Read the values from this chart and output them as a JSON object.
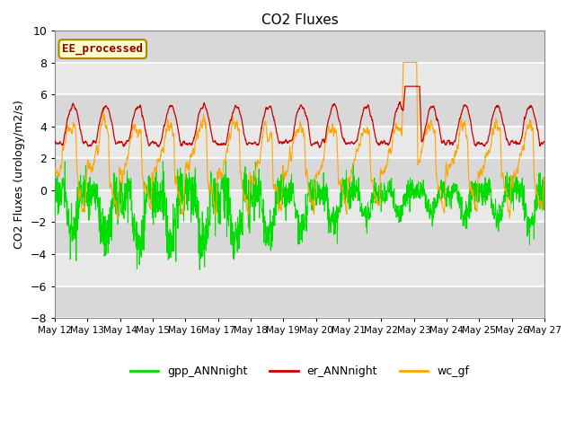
{
  "title": "CO2 Fluxes",
  "ylabel": "CO2 Fluxes (urology/m2/s)",
  "ylim": [
    -8,
    10
  ],
  "yticks": [
    -8,
    -6,
    -4,
    -2,
    0,
    2,
    4,
    6,
    8,
    10
  ],
  "x_start_day": 12,
  "x_end_day": 27,
  "x_tick_days": [
    12,
    13,
    14,
    15,
    16,
    17,
    18,
    19,
    20,
    21,
    22,
    23,
    24,
    25,
    26,
    27
  ],
  "colors": {
    "gpp": "#00DD00",
    "er": "#CC0000",
    "wc": "#FFA500"
  },
  "legend_labels": [
    "gpp_ANNnight",
    "er_ANNnight",
    "wc_gf"
  ],
  "annotation_text": "EE_processed",
  "annotation_bg": "#FFFFCC",
  "annotation_border": "#AA8800",
  "background_color": "#E8E8E8",
  "background_band_color": "#D8D8D8",
  "grid_color": "#FFFFFF",
  "n_points": 2000,
  "random_seed": 7
}
